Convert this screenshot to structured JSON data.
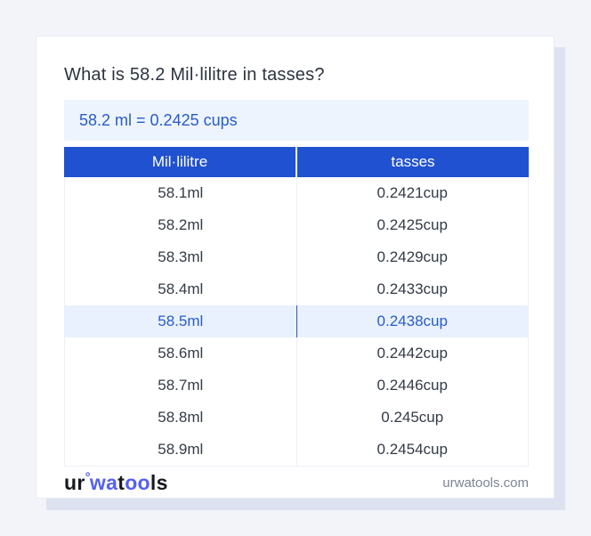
{
  "header": {
    "title": "What is 58.2 Mil·lilitre in tasses?",
    "result": "58.2 ml = 0.2425 cups"
  },
  "table": {
    "headers": [
      "Mil·lilitre",
      "tasses"
    ],
    "rows": [
      {
        "ml": "58.1ml",
        "cup": "0.2421cup",
        "highlight": false
      },
      {
        "ml": "58.2ml",
        "cup": "0.2425cup",
        "highlight": false
      },
      {
        "ml": "58.3ml",
        "cup": "0.2429cup",
        "highlight": false
      },
      {
        "ml": "58.4ml",
        "cup": "0.2433cup",
        "highlight": false
      },
      {
        "ml": "58.5ml",
        "cup": "0.2438cup",
        "highlight": true
      },
      {
        "ml": "58.6ml",
        "cup": "0.2442cup",
        "highlight": false
      },
      {
        "ml": "58.7ml",
        "cup": "0.2446cup",
        "highlight": false
      },
      {
        "ml": "58.8ml",
        "cup": "0.245cup",
        "highlight": false
      },
      {
        "ml": "58.9ml",
        "cup": "0.2454cup",
        "highlight": false
      }
    ]
  },
  "footer": {
    "logo": {
      "part1": "ur",
      "ring": "°",
      "part2": "wa",
      "part3": "t",
      "part4": "oo",
      "part5": "ls"
    },
    "domain": "urwatools.com"
  },
  "colors": {
    "page_bg": "#f3f4fa",
    "card_border": "#e9ebf4",
    "card_shadow": "#dce2ef",
    "title_text": "#2d3440",
    "result_bg": "#edf4fd",
    "accent_text": "#2a5cc7",
    "header_bg": "#2051d0",
    "row_text": "#333b47",
    "highlight_bg": "#e8f1fd",
    "table_border": "#edeff6",
    "logo_dark": "#17191e",
    "logo_blue": "#5560ef",
    "muted_text": "#7d8494"
  }
}
